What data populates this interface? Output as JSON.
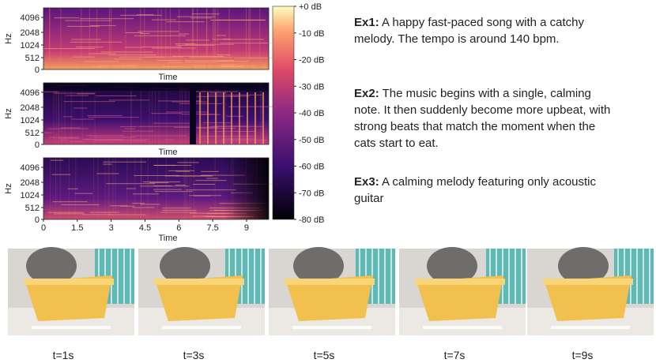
{
  "spectrograms": [
    {
      "y_label": "Hz",
      "x_label": "Time",
      "yticks": [
        4096,
        2048,
        1024,
        512,
        0
      ]
    },
    {
      "y_label": "Hz",
      "x_label": "Time",
      "yticks": [
        4096,
        2048,
        1024,
        512,
        0
      ]
    },
    {
      "y_label": "Hz",
      "x_label": "Time",
      "yticks": [
        4096,
        2048,
        1024,
        512,
        0
      ],
      "xticks": [
        0,
        1.5,
        3,
        4.5,
        6,
        7.5,
        9
      ]
    }
  ],
  "colorbar": {
    "ylim": [
      -80,
      0
    ],
    "ticks": [
      {
        "value": 0,
        "label": "+0 dB"
      },
      {
        "value": -10,
        "label": "-10 dB"
      },
      {
        "value": -20,
        "label": "-20 dB"
      },
      {
        "value": -30,
        "label": "-30 dB"
      },
      {
        "value": -40,
        "label": "-40 dB"
      },
      {
        "value": -50,
        "label": "-50 dB"
      },
      {
        "value": -60,
        "label": "-60 dB"
      },
      {
        "value": -70,
        "label": "-70 dB"
      },
      {
        "value": -80,
        "label": "-80 dB"
      }
    ]
  },
  "examples": [
    {
      "label": "Ex1:",
      "text": "A happy fast-paced song with a catchy melody. The tempo is around 140 bpm."
    },
    {
      "label": "Ex2:",
      "text": "The music begins with a single, calming note. It then suddenly become more upbeat, with strong beats that match the moment when the cats start to eat."
    },
    {
      "label": "Ex3:",
      "text": "A calming melody featuring only acoustic guitar"
    }
  ],
  "frames": [
    "t=1s",
    "t=3s",
    "t=5s",
    "t=7s",
    "t=9s"
  ]
}
